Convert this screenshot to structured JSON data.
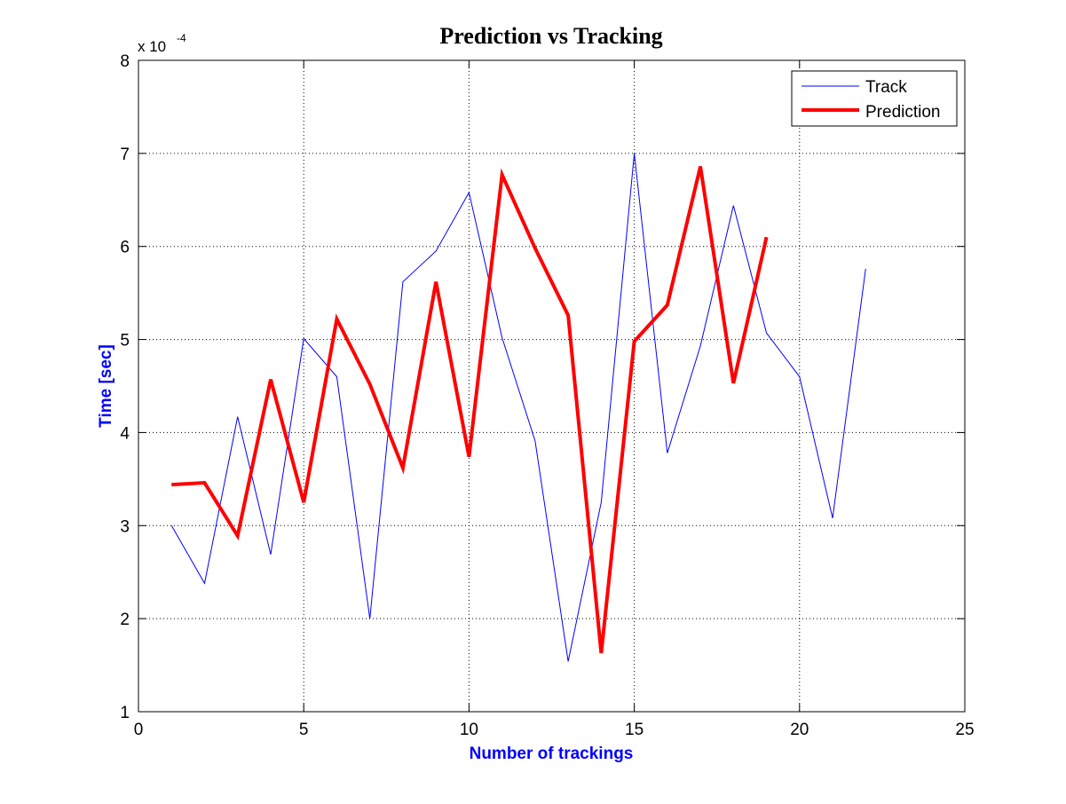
{
  "chart_data": {
    "type": "line",
    "title": "Prediction vs Tracking",
    "xlabel": "Number of trackings",
    "ylabel": "Time [sec]",
    "y_exponent_label": "x 10",
    "y_exponent_power": "-4",
    "xlim": [
      0,
      25
    ],
    "ylim": [
      1,
      8
    ],
    "xticks": [
      0,
      5,
      10,
      15,
      20,
      25
    ],
    "yticks": [
      1,
      2,
      3,
      4,
      5,
      6,
      7,
      8
    ],
    "grid": true,
    "legend_position": "top-right",
    "series": [
      {
        "name": "Track",
        "color": "#0000ff",
        "x": [
          1,
          2,
          3,
          4,
          5,
          6,
          7,
          8,
          9,
          10,
          11,
          12,
          13,
          14,
          15,
          16,
          17,
          18,
          19,
          20,
          21,
          22
        ],
        "values": [
          3.0,
          2.38,
          4.17,
          2.69,
          5.01,
          4.6,
          2.0,
          5.62,
          5.95,
          6.58,
          5.02,
          3.91,
          1.54,
          3.25,
          7.0,
          3.78,
          4.93,
          6.44,
          5.07,
          4.6,
          3.08,
          5.76
        ]
      },
      {
        "name": "Prediction",
        "color": "#ff0000",
        "x": [
          1,
          2,
          3,
          4,
          5,
          6,
          7,
          8,
          9,
          10,
          11,
          12,
          13,
          14,
          15,
          16,
          17,
          18,
          19
        ],
        "values": [
          3.44,
          3.46,
          2.89,
          4.57,
          3.25,
          5.22,
          4.52,
          3.62,
          5.62,
          3.74,
          6.77,
          5.98,
          5.26,
          1.63,
          4.98,
          5.37,
          6.86,
          4.53,
          6.1
        ]
      }
    ]
  }
}
